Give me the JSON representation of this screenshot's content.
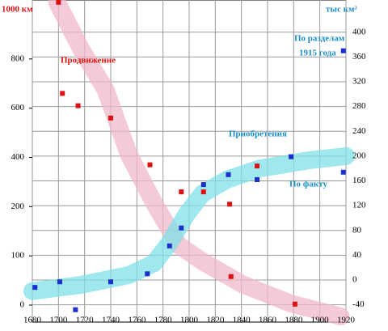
{
  "chart_data": {
    "type": "scatter",
    "xlim": [
      1680,
      1920
    ],
    "xticks": [
      1680,
      1700,
      1720,
      1740,
      1760,
      1780,
      1800,
      1820,
      1840,
      1860,
      1880,
      1900,
      1920
    ],
    "ylabel": "1000 км",
    "ylim": [
      0,
      1000
    ],
    "yticks": [
      0,
      100,
      200,
      400,
      600,
      800
    ],
    "yscale": "piecewise",
    "y2label": "тыс км²",
    "y2lim": [
      -68,
      452
    ],
    "y2ticks": [
      -40,
      0,
      40,
      80,
      120,
      160,
      200,
      240,
      280,
      320,
      360,
      400
    ],
    "grid": true,
    "series": [
      {
        "name": "Продвижение",
        "color": "#dd1111",
        "axis": "y",
        "x": [
          1700,
          1703,
          1715,
          1740,
          1770,
          1794,
          1811,
          1831,
          1832,
          1852,
          1881
        ],
        "values": [
          1030,
          660,
          610,
          560,
          370,
          260,
          260,
          210,
          58,
          365,
          2
        ],
        "trend": {
          "color": "#f0b8c8",
          "x": [
            1699,
            1717,
            1736,
            1754,
            1773,
            1792,
            1810,
            1841,
            1878,
            1916
          ],
          "values": [
            1030,
            843,
            675,
            410,
            216,
            122,
            89,
            42,
            3,
            -23
          ]
        }
      },
      {
        "name": "Приобретения",
        "color": "#1a2fcc",
        "axis": "y2",
        "x": [
          1682,
          1701,
          1713,
          1740,
          1768,
          1785,
          1794,
          1811,
          1830,
          1852,
          1878,
          1918
        ],
        "values": [
          -12,
          -3,
          -48,
          -3,
          10,
          55,
          84,
          154,
          170,
          162,
          199,
          174
        ],
        "trend": {
          "color": "#7fe0e8",
          "x": [
            1680,
            1717,
            1754,
            1773,
            1785,
            1798,
            1810,
            1829,
            1854,
            1891,
            1920
          ],
          "values": [
            -18,
            -8,
            8,
            27,
            60,
            106,
            139,
            162,
            180,
            193,
            200
          ]
        }
      }
    ],
    "annotations": {
      "fact": "По факту",
      "partition_lines": [
        "По разделам",
        "1915 года"
      ]
    },
    "partition_point": {
      "x": 1918,
      "value": 370,
      "color": "#1a2fcc"
    }
  }
}
